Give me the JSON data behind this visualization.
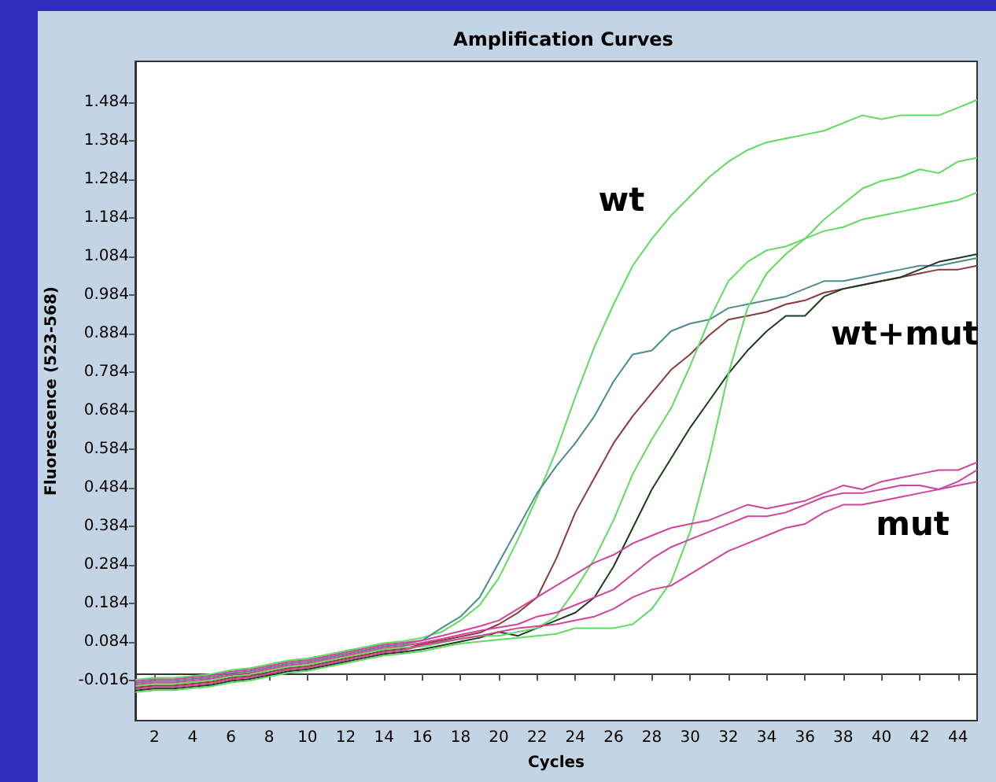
{
  "chart_data": {
    "type": "line",
    "title": "Amplification Curves",
    "xlabel": "Cycles",
    "ylabel": "Fluorescence (523-568)",
    "x": [
      1,
      2,
      3,
      4,
      5,
      6,
      7,
      8,
      9,
      10,
      11,
      12,
      13,
      14,
      15,
      16,
      17,
      18,
      19,
      20,
      21,
      22,
      23,
      24,
      25,
      26,
      27,
      28,
      29,
      30,
      31,
      32,
      33,
      34,
      35,
      36,
      37,
      38,
      39,
      40,
      41,
      42,
      43,
      44,
      45
    ],
    "xlim": [
      1,
      45
    ],
    "xticks": [
      2,
      4,
      6,
      8,
      10,
      12,
      14,
      16,
      18,
      20,
      22,
      24,
      26,
      28,
      30,
      32,
      34,
      36,
      38,
      40,
      42,
      44
    ],
    "ylim": [
      -0.12,
      1.59
    ],
    "yticks": [
      -0.016,
      0.084,
      0.184,
      0.284,
      0.384,
      0.484,
      0.584,
      0.684,
      0.784,
      0.884,
      0.984,
      1.084,
      1.184,
      1.284,
      1.384,
      1.484
    ],
    "grid": false,
    "marker": "none",
    "line_style": "solid",
    "series": [
      {
        "color": "#5fdc5f",
        "values": [
          -0.014,
          -0.009,
          -0.009,
          -0.004,
          0.001,
          0.011,
          0.016,
          0.026,
          0.036,
          0.041,
          0.051,
          0.061,
          0.071,
          0.081,
          0.086,
          0.095,
          0.11,
          0.14,
          0.18,
          0.25,
          0.35,
          0.46,
          0.58,
          0.72,
          0.85,
          0.96,
          1.06,
          1.13,
          1.19,
          1.24,
          1.29,
          1.33,
          1.36,
          1.38,
          1.39,
          1.4,
          1.41,
          1.43,
          1.45,
          1.44,
          1.45,
          1.45,
          1.45,
          1.47,
          1.49
        ]
      },
      {
        "color": "#4e8c8c",
        "values": [
          -0.022,
          -0.017,
          -0.017,
          -0.012,
          -0.007,
          0.003,
          0.008,
          0.018,
          0.028,
          0.033,
          0.043,
          0.053,
          0.063,
          0.073,
          0.078,
          0.088,
          0.12,
          0.15,
          0.2,
          0.29,
          0.38,
          0.47,
          0.54,
          0.6,
          0.67,
          0.76,
          0.83,
          0.84,
          0.89,
          0.91,
          0.92,
          0.95,
          0.96,
          0.97,
          0.98,
          1.0,
          1.02,
          1.02,
          1.03,
          1.04,
          1.05,
          1.06,
          1.06,
          1.07,
          1.08
        ]
      },
      {
        "color": "#8b3b3b",
        "values": [
          -0.034,
          -0.029,
          -0.029,
          -0.024,
          -0.019,
          -0.009,
          -0.004,
          0.006,
          0.016,
          0.021,
          0.031,
          0.041,
          0.051,
          0.061,
          0.066,
          0.079,
          0.088,
          0.098,
          0.108,
          0.13,
          0.16,
          0.2,
          0.3,
          0.42,
          0.51,
          0.6,
          0.67,
          0.73,
          0.79,
          0.83,
          0.88,
          0.92,
          0.93,
          0.94,
          0.96,
          0.97,
          0.99,
          1.0,
          1.01,
          1.02,
          1.03,
          1.04,
          1.05,
          1.05,
          1.06
        ]
      },
      {
        "color": "#1f3a22",
        "values": [
          -0.042,
          -0.037,
          -0.037,
          -0.032,
          -0.027,
          -0.017,
          -0.012,
          -0.002,
          0.008,
          0.013,
          0.023,
          0.033,
          0.043,
          0.053,
          0.058,
          0.065,
          0.075,
          0.085,
          0.095,
          0.11,
          0.1,
          0.12,
          0.14,
          0.16,
          0.2,
          0.28,
          0.38,
          0.48,
          0.56,
          0.64,
          0.71,
          0.78,
          0.84,
          0.89,
          0.93,
          0.93,
          0.98,
          1.0,
          1.01,
          1.02,
          1.03,
          1.05,
          1.07,
          1.08,
          1.09
        ]
      },
      {
        "color": "#5fdc5f",
        "values": [
          -0.03,
          -0.025,
          -0.025,
          -0.02,
          -0.015,
          -0.005,
          0.0,
          0.01,
          0.02,
          0.025,
          0.035,
          0.045,
          0.055,
          0.065,
          0.07,
          0.072,
          0.082,
          0.092,
          0.1,
          0.1,
          0.11,
          0.12,
          0.15,
          0.22,
          0.3,
          0.4,
          0.52,
          0.61,
          0.69,
          0.8,
          0.92,
          1.02,
          1.07,
          1.1,
          1.11,
          1.13,
          1.15,
          1.16,
          1.18,
          1.19,
          1.2,
          1.21,
          1.22,
          1.23,
          1.25
        ]
      },
      {
        "color": "#5fdc5f",
        "values": [
          -0.046,
          -0.041,
          -0.041,
          -0.036,
          -0.031,
          -0.021,
          -0.016,
          -0.006,
          0.004,
          0.009,
          0.019,
          0.029,
          0.039,
          0.049,
          0.054,
          0.06,
          0.07,
          0.08,
          0.085,
          0.09,
          0.095,
          0.1,
          0.105,
          0.12,
          0.12,
          0.12,
          0.13,
          0.17,
          0.24,
          0.37,
          0.56,
          0.78,
          0.95,
          1.04,
          1.09,
          1.13,
          1.18,
          1.22,
          1.26,
          1.28,
          1.29,
          1.31,
          1.3,
          1.33,
          1.34
        ]
      },
      {
        "color": "#d0449c",
        "values": [
          -0.018,
          -0.013,
          -0.013,
          -0.008,
          -0.003,
          0.007,
          0.012,
          0.022,
          0.032,
          0.037,
          0.047,
          0.057,
          0.067,
          0.077,
          0.082,
          0.088,
          0.1,
          0.112,
          0.125,
          0.14,
          0.17,
          0.2,
          0.23,
          0.26,
          0.29,
          0.31,
          0.34,
          0.36,
          0.38,
          0.39,
          0.4,
          0.42,
          0.44,
          0.43,
          0.44,
          0.45,
          0.47,
          0.49,
          0.48,
          0.5,
          0.51,
          0.52,
          0.53,
          0.53,
          0.55
        ]
      },
      {
        "color": "#d0449c",
        "values": [
          -0.026,
          -0.021,
          -0.021,
          -0.016,
          -0.011,
          -0.001,
          0.004,
          0.014,
          0.024,
          0.029,
          0.039,
          0.049,
          0.059,
          0.069,
          0.074,
          0.082,
          0.092,
          0.103,
          0.113,
          0.122,
          0.13,
          0.15,
          0.16,
          0.18,
          0.2,
          0.22,
          0.26,
          0.3,
          0.33,
          0.35,
          0.37,
          0.39,
          0.41,
          0.41,
          0.42,
          0.44,
          0.46,
          0.47,
          0.47,
          0.48,
          0.49,
          0.49,
          0.48,
          0.5,
          0.53
        ]
      },
      {
        "color": "#d0449c",
        "values": [
          -0.038,
          -0.033,
          -0.033,
          -0.028,
          -0.023,
          -0.013,
          -0.008,
          0.002,
          0.012,
          0.017,
          0.027,
          0.037,
          0.047,
          0.057,
          0.062,
          0.076,
          0.084,
          0.092,
          0.1,
          0.11,
          0.12,
          0.125,
          0.13,
          0.14,
          0.15,
          0.17,
          0.2,
          0.22,
          0.23,
          0.26,
          0.29,
          0.32,
          0.34,
          0.36,
          0.38,
          0.39,
          0.42,
          0.44,
          0.44,
          0.45,
          0.46,
          0.47,
          0.48,
          0.49,
          0.5
        ]
      }
    ],
    "annotations": [
      "wt",
      "wt+mut",
      "mut"
    ]
  }
}
